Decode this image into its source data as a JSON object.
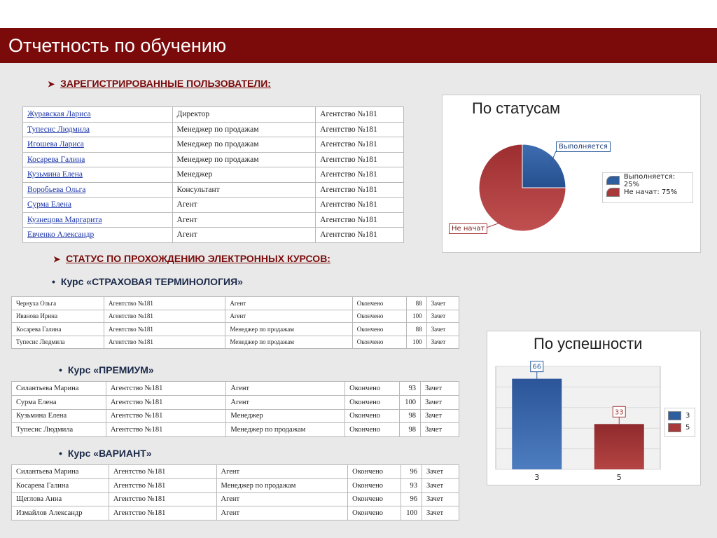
{
  "header": {
    "title": "Отчетность по обучению"
  },
  "users_section": {
    "heading": "ЗАРЕГИСТРИРОВАННЫЕ ПОЛЬЗОВАТЕЛИ:",
    "rows": [
      {
        "name": "Журавская  Лариса",
        "role": "Директор",
        "agency": "Агентство №181"
      },
      {
        "name": "Тупесис  Людмила",
        "role": "Менеджер по продажам",
        "agency": "Агентство №181"
      },
      {
        "name": "Игошева  Лариса",
        "role": "Менеджер по продажам",
        "agency": "Агентство №181"
      },
      {
        "name": "Косарева  Галина",
        "role": "Менеджер по продажам",
        "agency": "Агентство №181"
      },
      {
        "name": "Кузьмина  Елена",
        "role": "Менеджер",
        "agency": "Агентство №181"
      },
      {
        "name": "Воробьева  Ольга",
        "role": "Консультант",
        "agency": "Агентство №181"
      },
      {
        "name": "Сурма  Елена",
        "role": "Агент",
        "agency": "Агентство №181"
      },
      {
        "name": "Кузнецова  Маргарита",
        "role": "Агент",
        "agency": "Агентство №181"
      },
      {
        "name": "Евченко  Александр",
        "role": "Агент",
        "agency": "Агентство №181"
      }
    ]
  },
  "status_section": {
    "heading": "СТАТУС ПО ПРОХОЖДЕНИЮ ЭЛЕКТРОННЫХ КУРСОВ:"
  },
  "courses": [
    {
      "title": "Курс «СТРАХОВАЯ ТЕРМИНОЛОГИЯ»",
      "rows": [
        {
          "name": "Чернуха  Ольга",
          "agency": "Агентство №181",
          "role": "Агент",
          "status": "Окончено",
          "score": "88",
          "result": "Зачет"
        },
        {
          "name": "Иванова  Ирина",
          "agency": "Агентство №181",
          "role": "Агент",
          "status": "Окончено",
          "score": "100",
          "result": "Зачет"
        },
        {
          "name": "Косарева  Галина",
          "agency": "Агентство №181",
          "role": "Менеджер по продажам",
          "status": "Окончено",
          "score": "88",
          "result": "Зачет"
        },
        {
          "name": "Тупесис  Людмила",
          "agency": "Агентство №181",
          "role": "Менеджер по продажам",
          "status": "Окончено",
          "score": "100",
          "result": "Зачет"
        }
      ]
    },
    {
      "title": "Курс «ПРЕМИУМ»",
      "rows": [
        {
          "name": "Силантьева  Марина",
          "agency": "Агентство №181",
          "role": "Агент",
          "status": "Окончено",
          "score": "93",
          "result": "Зачет"
        },
        {
          "name": "Сурма  Елена",
          "agency": "Агентство №181",
          "role": "Агент",
          "status": "Окончено",
          "score": "100",
          "result": "Зачет"
        },
        {
          "name": "Кузьмина  Елена",
          "agency": "Агентство №181",
          "role": "Менеджер",
          "status": "Окончено",
          "score": "98",
          "result": "Зачет"
        },
        {
          "name": "Тупесис  Людмила",
          "agency": "Агентство №181",
          "role": "Менеджер по продажам",
          "status": "Окончено",
          "score": "98",
          "result": "Зачет"
        }
      ]
    },
    {
      "title": "Курс «ВАРИАНТ»",
      "rows": [
        {
          "name": "Силантьева  Марина",
          "agency": "Агентство №181",
          "role": "Агент",
          "status": "Окончено",
          "score": "96",
          "result": "Зачет"
        },
        {
          "name": "Косарева  Галина",
          "agency": "Агентство №181",
          "role": "Менеджер по продажам",
          "status": "Окончено",
          "score": "93",
          "result": "Зачет"
        },
        {
          "name": "Щеглова  Анна",
          "agency": "Агентство №181",
          "role": "Агент",
          "status": "Окончено",
          "score": "96",
          "result": "Зачет"
        },
        {
          "name": "Измайлов  Александр",
          "agency": "Агентство №181",
          "role": "Агент",
          "status": "Окончено",
          "score": "100",
          "result": "Зачет"
        }
      ]
    }
  ],
  "colors": {
    "brand": "#7b0a0a",
    "blue": "#2e5e9e",
    "red": "#a8393a"
  },
  "chart_data": [
    {
      "type": "pie",
      "title": "По статусам",
      "slices": [
        {
          "label": "Выполняется",
          "legend": "Выполняется: 25%",
          "value": 25
        },
        {
          "label": "Не начат",
          "legend": "Не начат: 75%",
          "value": 75
        }
      ],
      "legend_position": "right"
    },
    {
      "type": "bar",
      "title": "По успешности",
      "categories": [
        "3",
        "5"
      ],
      "values": [
        66,
        33
      ],
      "legend": [
        "3",
        "5"
      ],
      "ylim": [
        0,
        75
      ],
      "grid": true,
      "legend_position": "right"
    }
  ]
}
